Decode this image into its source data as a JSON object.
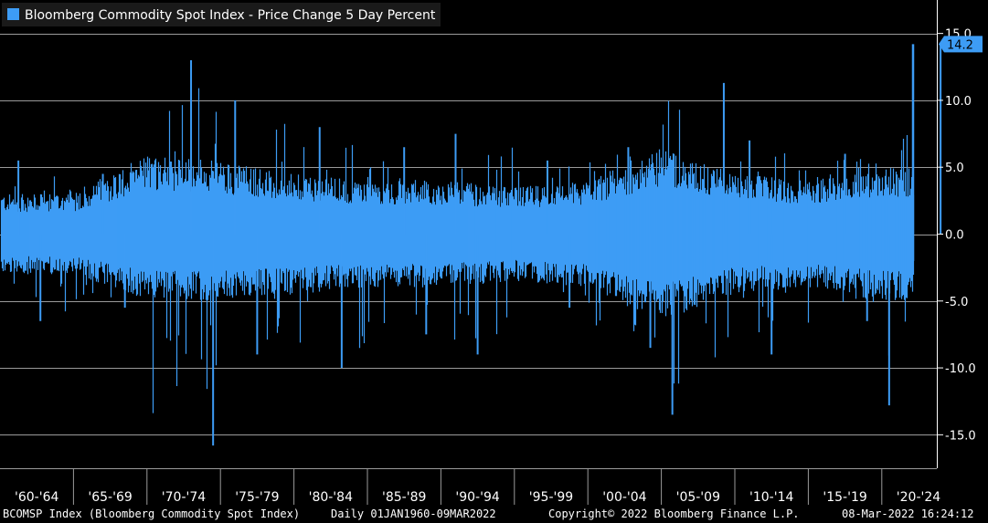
{
  "chart_data": {
    "type": "bar",
    "title": "Bloomberg Commodity Spot Index - Price Change 5 Day Percent",
    "series": [
      {
        "name": "Bloomberg Commodity Spot Index - Price Change 5 Day Percent",
        "color": "#3d9cf5"
      }
    ],
    "ylim": [
      -17.5,
      17.5
    ],
    "yticks": [
      -15.0,
      -10.0,
      -5.0,
      0.0,
      5.0,
      10.0,
      15.0
    ],
    "ytick_labels": [
      "-15.0",
      "-10.0",
      "-5.0",
      "0.0",
      "5.0",
      "10.0",
      "15.0"
    ],
    "xtick_labels": [
      "'60-'64",
      "'65-'69",
      "'70-'74",
      "'75-'79",
      "'80-'84",
      "'85-'89",
      "'90-'94",
      "'95-'99",
      "'00-'04",
      "'05-'09",
      "'10-'14",
      "'15-'19",
      "'20-'24"
    ],
    "last_value": 14.2,
    "last_value_label": "14.2",
    "grid": true,
    "legend_position": "top-left",
    "envelope_by_period": [
      {
        "period": "'60-'64",
        "upper": 3.0,
        "lower": -3.0,
        "max": 5.5,
        "min": -6.5
      },
      {
        "period": "'65-'69",
        "upper": 3.0,
        "lower": -3.0,
        "max": 4.5,
        "min": -5.5
      },
      {
        "period": "'70-'74",
        "upper": 6.0,
        "lower": -5.0,
        "max": 13.0,
        "min": -15.8
      },
      {
        "period": "'75-'79",
        "upper": 5.5,
        "lower": -5.0,
        "max": 10.0,
        "min": -9.0
      },
      {
        "period": "'80-'84",
        "upper": 4.5,
        "lower": -4.5,
        "max": 8.0,
        "min": -10.0
      },
      {
        "period": "'85-'89",
        "upper": 4.0,
        "lower": -4.0,
        "max": 6.5,
        "min": -7.5
      },
      {
        "period": "'90-'94",
        "upper": 4.0,
        "lower": -4.0,
        "max": 7.5,
        "min": -9.0
      },
      {
        "period": "'95-'99",
        "upper": 3.5,
        "lower": -3.5,
        "max": 5.5,
        "min": -5.5
      },
      {
        "period": "'00-'04",
        "upper": 4.0,
        "lower": -4.0,
        "max": 6.5,
        "min": -8.5
      },
      {
        "period": "'05-'09",
        "upper": 6.5,
        "lower": -6.5,
        "max": 11.3,
        "min": -13.5
      },
      {
        "period": "'10-'14",
        "upper": 4.5,
        "lower": -4.5,
        "max": 7.0,
        "min": -9.0
      },
      {
        "period": "'15-'19",
        "upper": 4.0,
        "lower": -4.0,
        "max": 6.0,
        "min": -6.5
      },
      {
        "period": "'20-'24",
        "upper": 5.0,
        "lower": -5.0,
        "max": 14.2,
        "min": -12.8
      }
    ]
  },
  "footer": {
    "ticker": "BCOMSP Index (Bloomberg Commodity Spot Index)",
    "range": "Daily 01JAN1960-09MAR2022",
    "copyright": "Copyright© 2022 Bloomberg Finance L.P.",
    "timestamp": "08-Mar-2022 16:24:12"
  }
}
